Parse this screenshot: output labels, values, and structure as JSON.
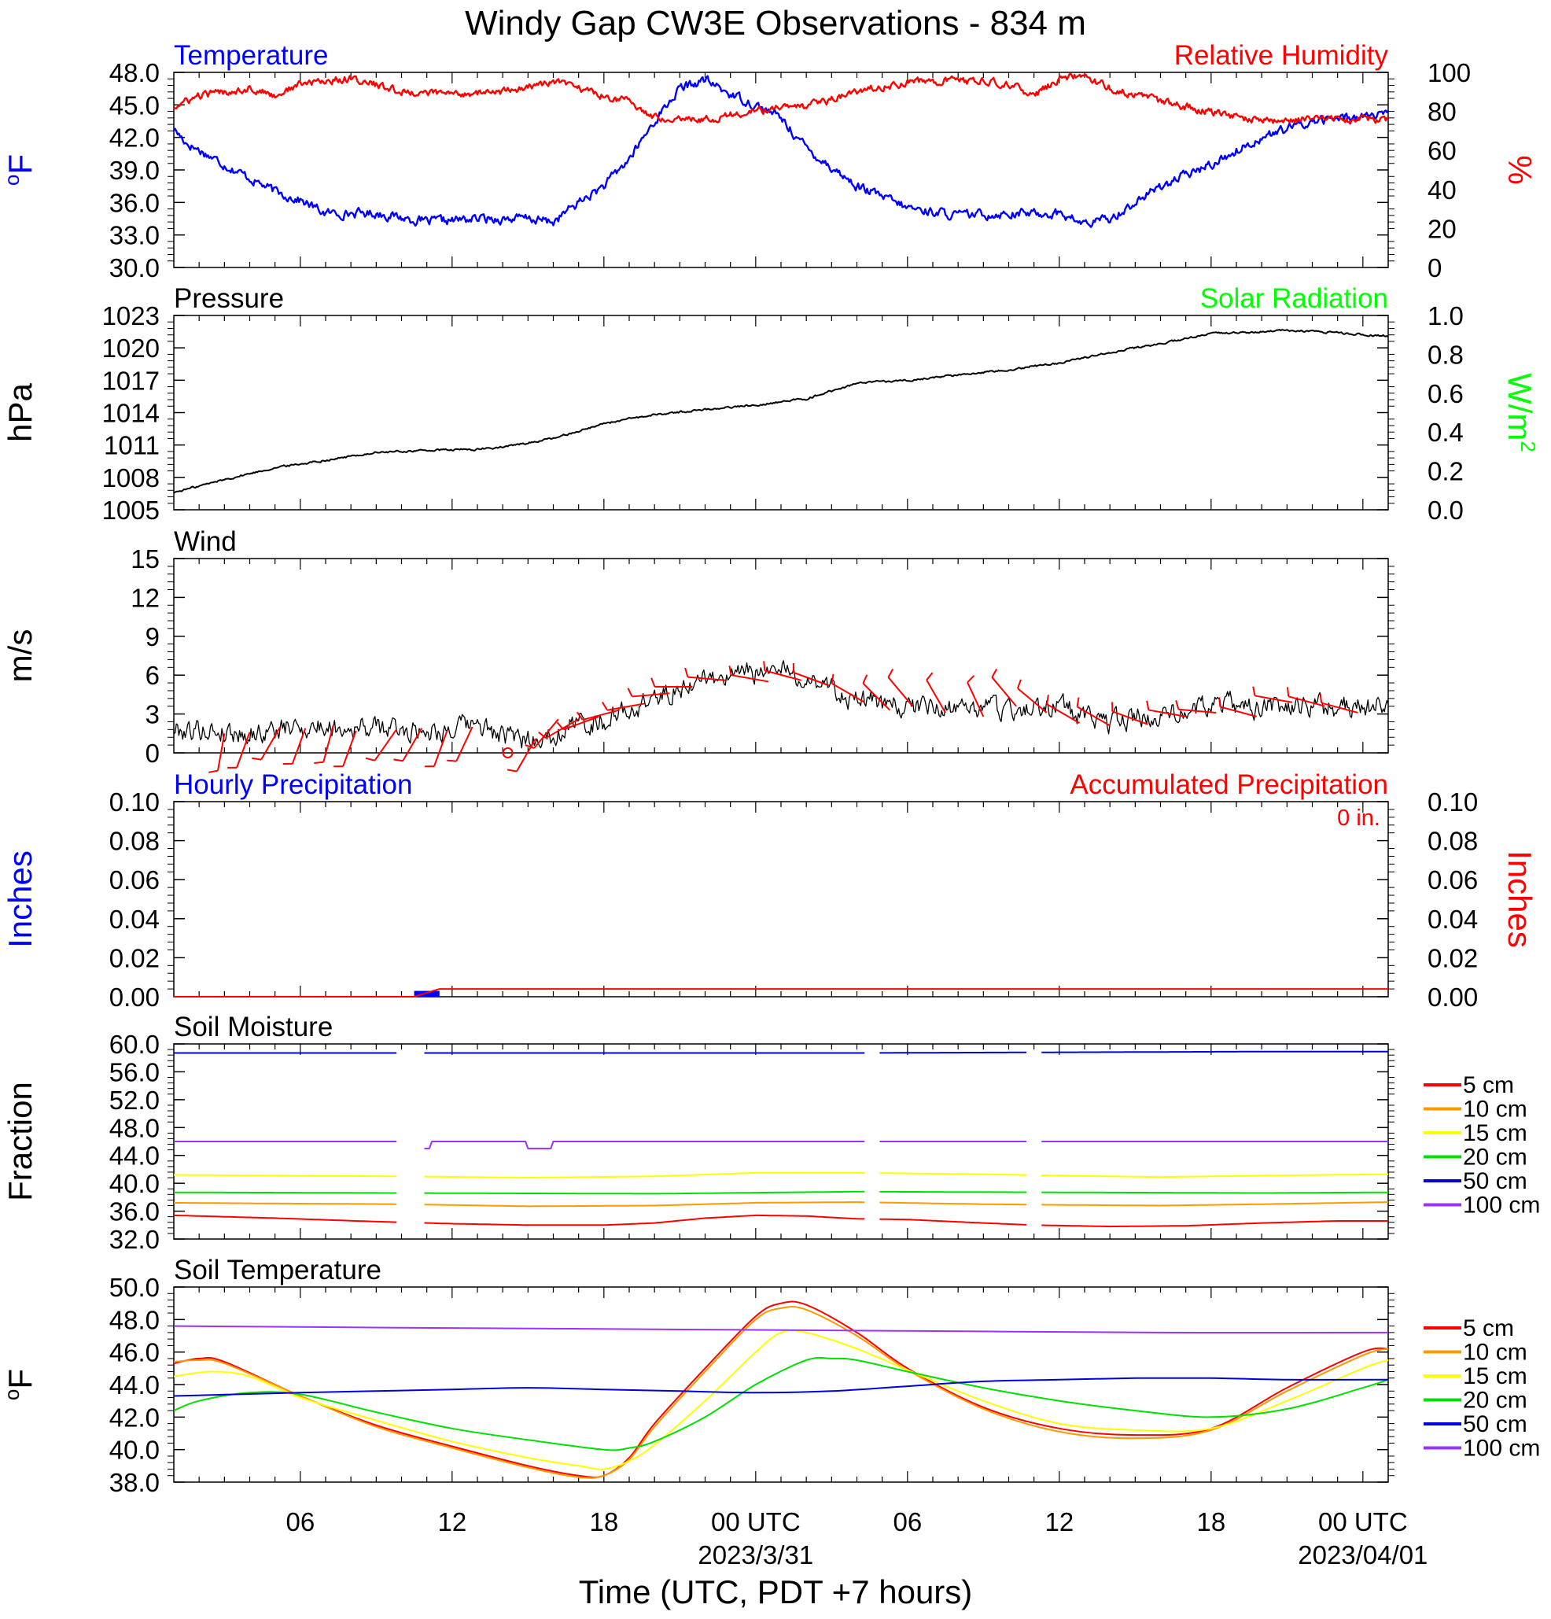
{
  "figure": {
    "title": "Windy Gap CW3E Observations - 834 m",
    "xlabel": "Time (UTC, PDT +7 hours)",
    "x_ticks": [
      {
        "label": "06",
        "hour": 6
      },
      {
        "label": "12",
        "hour": 12
      },
      {
        "label": "18",
        "hour": 18
      },
      {
        "label": "00 UTC",
        "hour": 24,
        "date": "2023/3/31"
      },
      {
        "label": "06",
        "hour": 30
      },
      {
        "label": "12",
        "hour": 36
      },
      {
        "label": "18",
        "hour": 42
      },
      {
        "label": "00 UTC",
        "hour": 48,
        "date": "2023/04/01"
      }
    ],
    "time_axis": {
      "start_hour": 1,
      "end_hour": 49
    }
  },
  "colors": {
    "blue": "#0000ff",
    "red": "#ff0000",
    "green": "#00ff00",
    "black": "#000000",
    "orange": "#ff9900",
    "yellow": "#ffff00",
    "soil_green": "#00e000",
    "soil_blue": "#0000dd",
    "purple": "#9933ff"
  },
  "chart_data": [
    {
      "type": "line",
      "left_title": "Temperature",
      "right_title": "Relative Humidity",
      "left_unit": "oF",
      "right_unit": "%",
      "y_ticks": [
        "48.0",
        "45.0",
        "42.0",
        "39.0",
        "36.0",
        "33.0",
        "30.0"
      ],
      "ylim": [
        30,
        48
      ],
      "y2_ticks": [
        "100",
        "80",
        "60",
        "40",
        "20",
        "0"
      ],
      "y2lim": [
        0,
        100
      ],
      "series": [
        {
          "name": "Temperature",
          "color": "#0000ff",
          "axis": "left",
          "noise": 0.35,
          "x": [
            1,
            1.5,
            3,
            5,
            6,
            7,
            9,
            11,
            13,
            15,
            16,
            17,
            18,
            19,
            20,
            21,
            22,
            23,
            24,
            25,
            26,
            28,
            30,
            32,
            34,
            36,
            37,
            38,
            40,
            42,
            44,
            46,
            48,
            49
          ],
          "y": [
            42.8,
            41.5,
            39.5,
            37.0,
            36.2,
            35.0,
            35.0,
            34.2,
            34.5,
            34.5,
            34.2,
            36.0,
            37.5,
            40.0,
            43.5,
            46.5,
            47.3,
            46.0,
            45.0,
            43.8,
            41.0,
            37.5,
            35.5,
            34.8,
            35.0,
            35.0,
            34.0,
            34.5,
            37.5,
            39.5,
            42.0,
            43.5,
            44.0,
            44.0
          ]
        },
        {
          "name": "Relative Humidity",
          "color": "#ff0000",
          "axis": "right",
          "noise": 1.6,
          "x": [
            1,
            1.5,
            2,
            3,
            4,
            5,
            6,
            8,
            10,
            12,
            14,
            16,
            17,
            18,
            19,
            20,
            21,
            22,
            23,
            24,
            25,
            26,
            28,
            30,
            32,
            34,
            35,
            36,
            37,
            38,
            40,
            42,
            44,
            46,
            48,
            49
          ],
          "y": [
            82,
            85,
            88,
            90,
            92,
            88,
            94,
            97,
            90,
            89,
            90,
            95,
            92,
            88,
            85,
            77,
            77,
            76,
            78,
            80,
            82,
            82,
            90,
            95,
            96,
            94,
            88,
            97,
            98,
            92,
            85,
            80,
            75,
            76,
            76,
            76
          ]
        }
      ]
    },
    {
      "type": "line",
      "left_title": "Pressure",
      "right_title": "Solar Radiation",
      "left_unit": "hPa",
      "right_unit": "W/m",
      "right_unit_sup": "2",
      "y_ticks": [
        "1023",
        "1020",
        "1017",
        "1014",
        "1011",
        "1008",
        "1005"
      ],
      "ylim": [
        1005,
        1023
      ],
      "y2_ticks": [
        "1.0",
        "0.8",
        "0.6",
        "0.4",
        "0.2",
        "0.0"
      ],
      "y2lim": [
        0,
        1
      ],
      "series": [
        {
          "name": "Pressure",
          "color": "#000000",
          "axis": "left",
          "noise": 0.08,
          "x": [
            1,
            3,
            5,
            7,
            9,
            11,
            13,
            14,
            16,
            18,
            20,
            22,
            24,
            26,
            27,
            28,
            30,
            32,
            34,
            36,
            38,
            40,
            42,
            44,
            45,
            46,
            47,
            48,
            49
          ],
          "y": [
            1006.6,
            1007.8,
            1008.9,
            1009.6,
            1010.3,
            1010.5,
            1010.6,
            1010.8,
            1011.6,
            1013.0,
            1013.8,
            1014.3,
            1014.7,
            1015.3,
            1016.0,
            1016.7,
            1017.0,
            1017.5,
            1018.0,
            1018.6,
            1019.6,
            1020.4,
            1021.3,
            1021.5,
            1021.6,
            1021.5,
            1021.4,
            1021.2,
            1021.1
          ]
        }
      ]
    },
    {
      "type": "line",
      "left_title": "Wind",
      "left_unit": "m/s",
      "y_ticks": [
        "15",
        "12",
        "9",
        "6",
        "3",
        "0"
      ],
      "ylim": [
        0,
        15
      ],
      "series": [
        {
          "name": "Wind speed",
          "color": "#000000",
          "axis": "left",
          "noise": 0.7,
          "x": [
            1,
            2,
            4,
            6,
            8,
            10,
            12,
            13,
            14,
            15,
            16,
            17,
            18,
            19,
            20,
            21,
            22,
            23,
            24,
            25,
            26,
            27,
            28,
            30,
            32,
            34,
            36,
            37,
            38,
            40,
            42,
            44,
            46,
            48,
            49
          ],
          "y": [
            1.8,
            1.8,
            1.5,
            2.0,
            2.0,
            1.8,
            1.8,
            2.2,
            1.2,
            1.0,
            1.5,
            2.3,
            2.5,
            3.3,
            4.2,
            5.0,
            5.8,
            5.8,
            6.2,
            6.3,
            5.8,
            5.0,
            4.0,
            3.5,
            3.5,
            3.4,
            3.5,
            2.7,
            2.2,
            3.0,
            3.8,
            3.5,
            3.5,
            3.5,
            3.8
          ]
        },
        {
          "name": "Wind barbs",
          "color": "#ff0000",
          "type": "barbs",
          "x": [
            3,
            4,
            5.2,
            6.2,
            7.3,
            8.2,
            9.8,
            10.8,
            11.8,
            12.8,
            15.3,
            16.2,
            17.0,
            17.8,
            18.6,
            19.6,
            20.6,
            21.5,
            22.8,
            24.5,
            25.8,
            26.9,
            28.3,
            29.3,
            30.2,
            31.5,
            33.0,
            34.3,
            35.5,
            36.8,
            38.0,
            39.5,
            41.0,
            42.2,
            43.8,
            45.2,
            46.5,
            47.8
          ],
          "y": [
            1.5,
            1.6,
            2.0,
            1.9,
            2.1,
            1.7,
            1.8,
            1.9,
            1.7,
            2.0,
            1.1,
            2.6,
            2.6,
            2.8,
            3.3,
            3.8,
            4.6,
            5.1,
            5.6,
            5.5,
            5.6,
            5.2,
            3.9,
            3.3,
            3.6,
            3.1,
            2.8,
            3.6,
            3.1,
            2.3,
            2.1,
            2.2,
            2.8,
            3.1,
            2.8,
            3.9,
            3.6,
            3.1
          ],
          "dir": [
            190,
            200,
            210,
            200,
            195,
            200,
            215,
            210,
            200,
            205,
            210,
            220,
            240,
            250,
            255,
            260,
            265,
            270,
            275,
            280,
            285,
            290,
            300,
            315,
            320,
            330,
            335,
            320,
            310,
            300,
            300,
            290,
            280,
            275,
            285,
            280,
            285,
            285
          ],
          "calm": {
            "x": 14.2,
            "y": 0
          }
        }
      ]
    },
    {
      "type": "bar",
      "left_title": "Hourly Precipitation",
      "right_title": "Accumulated Precipitation",
      "accum_note": "0 in.",
      "left_unit": "Inches",
      "right_unit": "Inches",
      "y_ticks": [
        "0.10",
        "0.08",
        "0.06",
        "0.04",
        "0.02",
        "0.00"
      ],
      "ylim": [
        0,
        0.1
      ],
      "y2_ticks": [
        "0.10",
        "0.08",
        "0.06",
        "0.04",
        "0.02",
        "0.00"
      ],
      "y2lim": [
        0,
        0.1
      ],
      "series": [
        {
          "name": "Hourly Precipitation",
          "color": "#0000ff",
          "axis": "left",
          "bars": [
            {
              "x0": 10.5,
              "x1": 11.5,
              "value": 0.003
            }
          ]
        },
        {
          "name": "Accumulated Precipitation",
          "color": "#ff0000",
          "axis": "right",
          "x": [
            1,
            10.5,
            11,
            11.5,
            49
          ],
          "y": [
            0.0,
            0.0,
            0.002,
            0.004,
            0.004
          ]
        }
      ]
    },
    {
      "type": "line",
      "left_title": "Soil Moisture",
      "left_unit": "Fraction",
      "y_ticks": [
        "60.0",
        "56.0",
        "52.0",
        "48.0",
        "44.0",
        "40.0",
        "36.0",
        "32.0"
      ],
      "ylim": [
        32,
        60
      ],
      "legend": [
        "5 cm",
        "10 cm",
        "15 cm",
        "20 cm",
        "50 cm",
        "100 cm"
      ],
      "gaps": [
        [
          9.8,
          10.9
        ],
        [
          28.3,
          28.9
        ],
        [
          34.7,
          35.3
        ]
      ],
      "series": [
        {
          "name": "5 cm",
          "color": "#ff0000",
          "x": [
            1,
            5,
            9,
            12,
            15,
            18,
            20,
            22,
            24,
            26,
            28,
            30,
            33,
            35,
            38,
            41,
            44,
            47,
            49
          ],
          "y": [
            35.4,
            35.0,
            34.5,
            34.2,
            34.0,
            34.0,
            34.3,
            35.0,
            35.4,
            35.3,
            34.9,
            34.8,
            34.3,
            34.0,
            33.8,
            33.9,
            34.3,
            34.6,
            34.6
          ]
        },
        {
          "name": "10 cm",
          "color": "#ff9900",
          "x": [
            1,
            5,
            10,
            15,
            20,
            24,
            28,
            33,
            36,
            40,
            44,
            49
          ],
          "y": [
            37.2,
            37.1,
            37.0,
            36.7,
            36.8,
            37.2,
            37.3,
            37.0,
            36.9,
            36.8,
            37.0,
            37.3
          ]
        },
        {
          "name": "15 cm",
          "color": "#ffff00",
          "x": [
            1,
            5,
            10,
            15,
            20,
            24,
            28,
            33,
            36,
            40,
            44,
            49
          ],
          "y": [
            41.2,
            41.1,
            41.0,
            40.8,
            41.0,
            41.5,
            41.5,
            41.3,
            41.1,
            40.9,
            41.1,
            41.3
          ]
        },
        {
          "name": "20 cm",
          "color": "#00e000",
          "x": [
            1,
            10,
            20,
            28,
            36,
            44,
            49
          ],
          "y": [
            38.7,
            38.6,
            38.5,
            38.8,
            38.7,
            38.6,
            38.7
          ]
        },
        {
          "name": "50 cm",
          "color": "#0000dd",
          "x": [
            1,
            10,
            20,
            28,
            36,
            44,
            49
          ],
          "y": [
            58.7,
            58.7,
            58.7,
            58.7,
            58.8,
            58.9,
            58.9
          ]
        },
        {
          "name": "100 cm",
          "color": "#9933ff",
          "x": [
            1,
            10.8,
            10.9,
            11.1,
            11.2,
            14.9,
            15.0,
            15.9,
            16.0,
            49
          ],
          "y": [
            46.0,
            46.0,
            45.0,
            45.0,
            46.0,
            46.0,
            45.0,
            45.0,
            46.0,
            46.0
          ]
        }
      ]
    },
    {
      "type": "line",
      "left_title": "Soil Temperature",
      "left_unit": "oF",
      "y_ticks": [
        "50.0",
        "48.0",
        "46.0",
        "44.0",
        "42.0",
        "40.0",
        "38.0"
      ],
      "ylim": [
        38,
        50
      ],
      "legend": [
        "5 cm",
        "10 cm",
        "15 cm",
        "20 cm",
        "50 cm",
        "100 cm"
      ],
      "series": [
        {
          "name": "5 cm",
          "color": "#ff0000",
          "x": [
            1,
            2,
            3,
            6,
            9,
            12,
            15,
            17,
            18,
            19,
            20,
            22,
            24,
            25,
            26,
            28,
            30,
            33,
            36,
            39,
            42,
            45,
            48,
            49
          ],
          "y": [
            45.3,
            45.6,
            45.4,
            43.3,
            41.5,
            40.2,
            39.0,
            38.4,
            38.4,
            39.5,
            41.6,
            45.0,
            48.2,
            49.0,
            48.9,
            47.2,
            45.0,
            42.6,
            41.3,
            40.9,
            41.3,
            43.8,
            46.0,
            46.2
          ]
        },
        {
          "name": "10 cm",
          "color": "#ff9900",
          "x": [
            1,
            2,
            3,
            6,
            9,
            12,
            15,
            17,
            18,
            19,
            20,
            22,
            24,
            25,
            26,
            28,
            30,
            33,
            36,
            39,
            42,
            45,
            48,
            49
          ],
          "y": [
            45.4,
            45.5,
            45.3,
            43.3,
            41.4,
            40.1,
            38.9,
            38.3,
            38.4,
            39.4,
            41.4,
            44.8,
            48.0,
            48.7,
            48.6,
            47.0,
            44.9,
            42.5,
            41.1,
            40.7,
            41.2,
            43.6,
            45.8,
            46.2
          ]
        },
        {
          "name": "15 cm",
          "color": "#ffff00",
          "x": [
            1,
            2.5,
            4,
            6,
            9,
            12,
            15,
            17,
            18,
            19,
            20,
            22,
            24,
            25,
            26,
            28,
            30,
            33,
            36,
            39,
            42,
            45,
            48,
            49
          ],
          "y": [
            44.5,
            44.8,
            44.5,
            43.2,
            41.8,
            40.5,
            39.5,
            39.0,
            38.8,
            39.3,
            40.3,
            43.0,
            46.0,
            47.2,
            47.2,
            46.2,
            44.9,
            43.0,
            41.6,
            41.2,
            41.3,
            43.0,
            45.0,
            45.5
          ]
        },
        {
          "name": "20 cm",
          "color": "#00e000",
          "x": [
            1,
            2,
            4,
            6,
            9,
            12,
            15,
            18,
            19,
            20,
            22,
            24,
            26,
            27,
            28,
            30,
            33,
            36,
            39,
            42,
            45,
            48,
            49
          ],
          "y": [
            42.4,
            43.0,
            43.5,
            43.4,
            42.3,
            41.3,
            40.6,
            40.0,
            40.1,
            40.5,
            42.0,
            44.0,
            45.5,
            45.6,
            45.5,
            44.8,
            43.8,
            43.0,
            42.4,
            42.0,
            42.5,
            43.8,
            44.3
          ]
        },
        {
          "name": "50 cm",
          "color": "#0000dd",
          "x": [
            1,
            6,
            12,
            15,
            18,
            21,
            24,
            27,
            30,
            33,
            36,
            39,
            42,
            45,
            49
          ],
          "y": [
            43.3,
            43.5,
            43.7,
            43.8,
            43.7,
            43.6,
            43.5,
            43.6,
            43.9,
            44.2,
            44.3,
            44.4,
            44.4,
            44.3,
            44.3
          ]
        },
        {
          "name": "100 cm",
          "color": "#9933ff",
          "x": [
            1,
            10,
            20,
            30,
            40,
            49
          ],
          "y": [
            47.6,
            47.5,
            47.4,
            47.3,
            47.2,
            47.2
          ]
        }
      ]
    }
  ]
}
